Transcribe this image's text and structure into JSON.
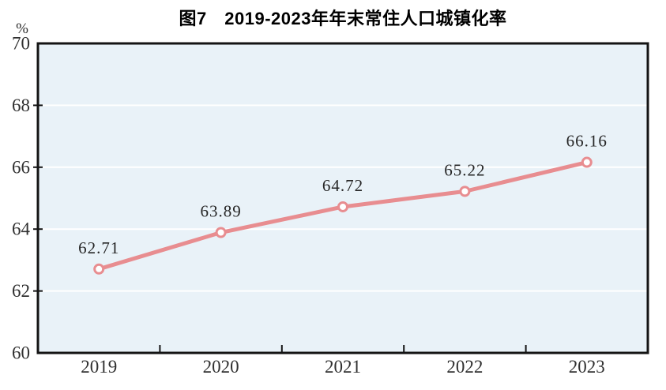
{
  "header": {
    "title": "图7　2019-2023年年末常住人口城镇化率"
  },
  "chart_data": {
    "type": "line",
    "title": "图7　2019-2023年年末常住人口城镇化率",
    "unit_label": "%",
    "categories": [
      "2019",
      "2020",
      "2021",
      "2022",
      "2023"
    ],
    "series": [
      {
        "name": "年末常住人口城镇化率",
        "values": [
          62.71,
          63.89,
          64.72,
          65.22,
          66.16
        ]
      }
    ],
    "data_labels": [
      "62.71",
      "63.89",
      "64.72",
      "65.22",
      "66.16"
    ],
    "xlabel": "",
    "ylabel": "%",
    "ylim": [
      60,
      70
    ],
    "yticks": [
      60,
      62,
      64,
      66,
      68,
      70
    ],
    "grid": true,
    "legend": "none"
  },
  "colors": {
    "line": "#e88d90",
    "marker_fill": "#ffffff",
    "plot_background": "#e9f2f8",
    "gridline": "#ffffff",
    "axis_border": "#141414",
    "tick_label": "#303030",
    "data_label": "#262626",
    "title": "#000000"
  }
}
